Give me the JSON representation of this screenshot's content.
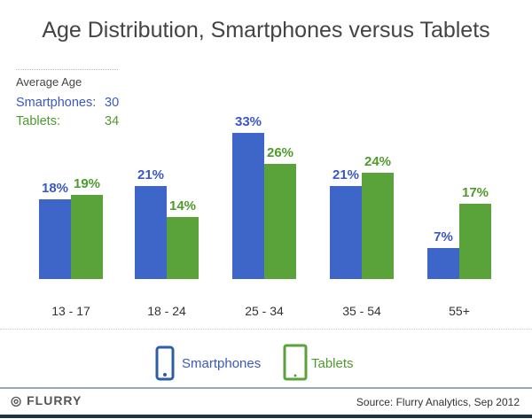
{
  "colors": {
    "smartphones": "#3e66c8",
    "tablets": "#5aa33a",
    "smartphones_text": "#3a58c4",
    "tablets_text": "#4f9a2c"
  },
  "average_age": {
    "heading": "Average Age",
    "smartphones_label": "Smartphones:",
    "smartphones_value": "30",
    "tablets_label": "Tablets:",
    "tablets_value": "34"
  },
  "legend": {
    "smartphones": "Smartphones",
    "tablets": "Tablets",
    "smartphones_icon": "smartphone-icon",
    "tablets_icon": "tablet-icon"
  },
  "footer": {
    "logo": "FLURRY",
    "source": "Source: Flurry Analytics, Sep 2012"
  },
  "chart_data": {
    "type": "bar",
    "title": "Age Distribution, Smartphones versus Tablets",
    "categories": [
      "13 - 17",
      "18 - 24",
      "25 - 34",
      "35 - 54",
      "55+"
    ],
    "series": [
      {
        "name": "Smartphones",
        "values": [
          18,
          21,
          33,
          21,
          7
        ],
        "labels": [
          "18%",
          "21%",
          "33%",
          "21%",
          "7%"
        ]
      },
      {
        "name": "Tablets",
        "values": [
          19,
          14,
          26,
          24,
          17
        ],
        "labels": [
          "19%",
          "14%",
          "26%",
          "24%",
          "17%"
        ]
      }
    ],
    "ylim": [
      0,
      35
    ],
    "grid": false,
    "legend": "bottom"
  }
}
